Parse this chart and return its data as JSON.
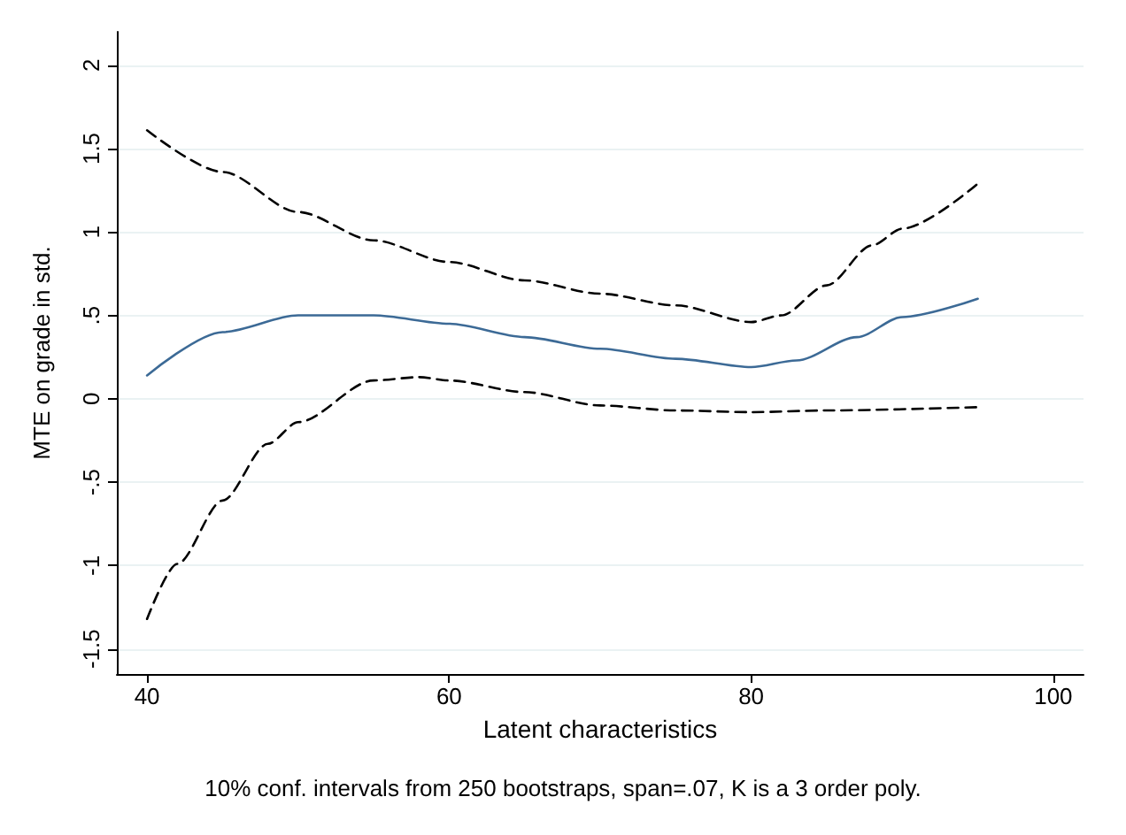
{
  "chart_data": {
    "type": "line",
    "xlabel": "Latent characteristics",
    "ylabel": "MTE on grade in std.",
    "annotations": [
      "10% conf. intervals from 250 bootstraps, span=.07, K is a 3 order poly."
    ],
    "xlim": [
      38,
      102
    ],
    "xticks": [
      40,
      60,
      80,
      100
    ],
    "ylim": [
      -1.65,
      2.2
    ],
    "yticks": [
      {
        "value": -1.5,
        "label": "-1.5"
      },
      {
        "value": -1,
        "label": "-1"
      },
      {
        "value": -0.5,
        "label": "-.5"
      },
      {
        "value": 0,
        "label": "0"
      },
      {
        "value": 0.5,
        "label": ".5"
      },
      {
        "value": 1,
        "label": "1"
      },
      {
        "value": 1.5,
        "label": "1.5"
      },
      {
        "value": 2,
        "label": "2"
      }
    ],
    "grid": "y",
    "marker": "none",
    "series": [
      {
        "color": "#3c6a96",
        "line_style": "solid",
        "x": [
          40,
          45,
          50,
          55,
          60,
          65,
          70,
          75,
          80,
          83,
          87,
          90,
          95
        ],
        "values": [
          0.14,
          0.4,
          0.5,
          0.5,
          0.45,
          0.37,
          0.3,
          0.24,
          0.19,
          0.23,
          0.37,
          0.49,
          0.6
        ]
      },
      {
        "color": "#000000",
        "line_style": "dashed",
        "x": [
          40,
          45,
          50,
          55,
          60,
          65,
          70,
          75,
          80,
          82,
          85,
          88,
          90,
          95
        ],
        "values": [
          1.61,
          1.36,
          1.12,
          0.95,
          0.82,
          0.71,
          0.63,
          0.56,
          0.46,
          0.5,
          0.68,
          0.92,
          1.02,
          1.29
        ]
      },
      {
        "color": "#000000",
        "line_style": "dashed",
        "x": [
          40,
          42,
          45,
          48,
          50,
          55,
          58,
          60,
          65,
          70,
          75,
          80,
          85,
          95
        ],
        "values": [
          -1.32,
          -0.99,
          -0.61,
          -0.27,
          -0.14,
          0.11,
          0.13,
          0.11,
          0.04,
          -0.04,
          -0.07,
          -0.08,
          -0.07,
          -0.05
        ]
      }
    ]
  }
}
